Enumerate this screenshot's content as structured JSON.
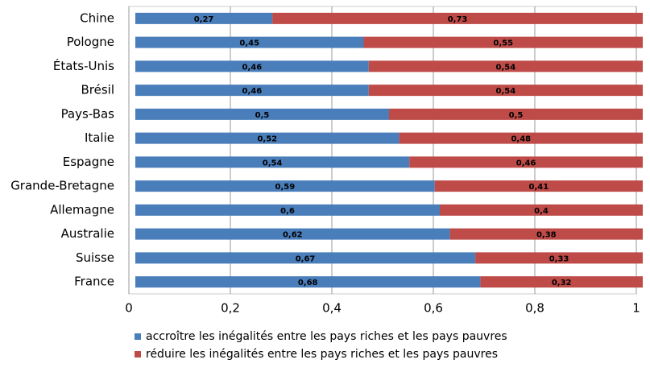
{
  "chart_data": {
    "type": "stacked-bar-horizontal",
    "categories": [
      "Chine",
      "Pologne",
      "États-Unis",
      "Brésil",
      "Pays-Bas",
      "Italie",
      "Espagne",
      "Grande-Bretagne",
      "Allemagne",
      "Australie",
      "Suisse",
      "France"
    ],
    "series": [
      {
        "name": "accroître les inégalités entre les pays riches et les pays pauvres",
        "color": "#4a7ebb",
        "values": [
          0.27,
          0.45,
          0.46,
          0.46,
          0.5,
          0.52,
          0.54,
          0.59,
          0.6,
          0.62,
          0.67,
          0.68
        ],
        "value_labels": [
          "0,27",
          "0,45",
          "0,46",
          "0,46",
          "0,5",
          "0,52",
          "0,54",
          "0,59",
          "0,6",
          "0,62",
          "0,67",
          "0,68"
        ]
      },
      {
        "name": "réduire les inégalités entre les pays riches et les pays pauvres",
        "color": "#be4b48",
        "values": [
          0.73,
          0.55,
          0.54,
          0.54,
          0.5,
          0.48,
          0.46,
          0.41,
          0.4,
          0.38,
          0.33,
          0.32
        ],
        "value_labels": [
          "0,73",
          "0,55",
          "0,54",
          "0,54",
          "0,5",
          "0,48",
          "0,46",
          "0,41",
          "0,4",
          "0,38",
          "0,33",
          "0,32"
        ]
      }
    ],
    "xlim": [
      0,
      1
    ],
    "xticks": [
      0,
      {
        "value": 0.2,
        "label": "0,2"
      },
      {
        "value": 0.4,
        "label": "0,4"
      },
      {
        "value": 0.6,
        "label": "0,6"
      },
      {
        "value": 0.8,
        "label": "0,8"
      },
      1
    ],
    "grid": true,
    "legend": "bottom"
  }
}
